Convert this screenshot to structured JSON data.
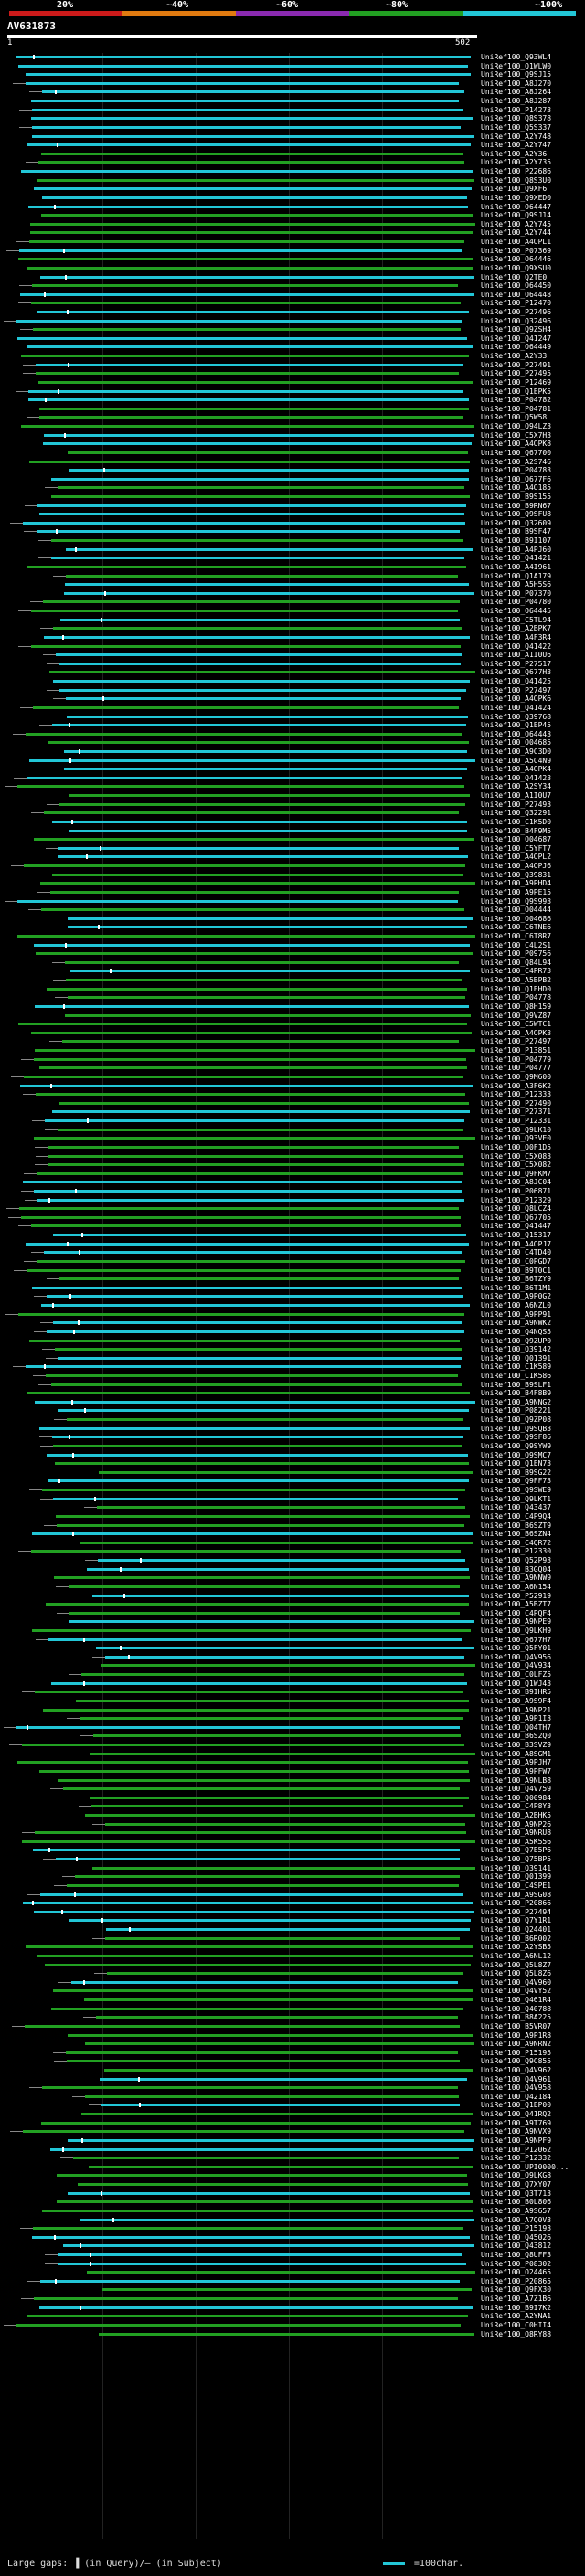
{
  "legend": {
    "labels": [
      "20%",
      "~40%",
      "~60%",
      "~80%",
      "~100%"
    ],
    "colors": [
      "#cc1a1a",
      "#e07a10",
      "#8a2ab0",
      "#22a022",
      "#22c6d6"
    ]
  },
  "query": {
    "title": "AV631873",
    "axis_start": "1",
    "axis_end": "502"
  },
  "colors": {
    "high": "#22c6d6",
    "mid": "#22a022",
    "tail": "#8a8a8a"
  },
  "hits": [
    "UniRef100_Q93WL4",
    "UniRef100_Q1WLW0",
    "UniRef100_Q9SJ15",
    "UniRef100_A8J270",
    "UniRef100_A8J264",
    "UniRef100_A8J287",
    "UniRef100_P14273",
    "UniRef100_Q8S378",
    "UniRef100_Q5S337",
    "UniRef100_A2Y748",
    "UniRef100_A2Y747",
    "UniRef100_A2Y36",
    "UniRef100_A2Y735",
    "UniRef100_P22686",
    "UniRef100_Q8S3U0",
    "UniRef100_Q9XF6",
    "UniRef100_Q9XED0",
    "UniRef100_O64447",
    "UniRef100_Q9SJ14",
    "UniRef100_A2Y745",
    "UniRef100_A2Y744",
    "UniRef100_A4OPL1",
    "UniRef100_P07369",
    "UniRef100_O64446",
    "UniRef100_Q9XSU0",
    "UniRef100_Q2TE0",
    "UniRef100_O64450",
    "UniRef100_O64448",
    "UniRef100_P12470",
    "UniRef100_P27496",
    "UniRef100_Q32496",
    "UniRef100_Q9ZSH4",
    "UniRef100_Q41247",
    "UniRef100_O64449",
    "UniRef100_A2Y33",
    "UniRef100_P27491",
    "UniRef100_P27495",
    "UniRef100_P12469",
    "UniRef100_Q1EPK5",
    "UniRef100_P04782",
    "UniRef100_P04781",
    "UniRef100_Q5W58",
    "UniRef100_Q94LZ3",
    "UniRef100_C5X7H3",
    "UniRef100_A4OPK8",
    "UniRef100_Q67700",
    "UniRef100_A2S746",
    "UniRef100_P04783",
    "UniRef100_Q677F6",
    "UniRef100_A4O185",
    "UniRef100_B9S155",
    "UniRef100_B9RN67",
    "UniRef100_Q9SFU8",
    "UniRef100_Q32609",
    "UniRef100_B9SF47",
    "UniRef100_B9I107",
    "UniRef100_A4PJ60",
    "UniRef100_Q41421",
    "UniRef100_A4I961",
    "UniRef100_Q1A179",
    "UniRef100_A5H5S6",
    "UniRef100_P07370",
    "UniRef100_P04780",
    "UniRef100_O64445",
    "UniRef100_C5TL94",
    "UniRef100_A2BPK7",
    "UniRef100_A4F3R4",
    "UniRef100_Q41422",
    "UniRef100_A1I0U6",
    "UniRef100_P27517",
    "UniRef100_Q677H3",
    "UniRef100_Q41425",
    "UniRef100_P27497",
    "UniRef100_A4OPK6",
    "UniRef100_Q41424",
    "UniRef100_Q39768",
    "UniRef100_Q1EP45",
    "UniRef100_O64443",
    "UniRef100_O04685",
    "UniRef100_A9C3D0",
    "UniRef100_A5C4N9",
    "UniRef100_A4OPK4",
    "UniRef100_Q41423",
    "UniRef100_A2SY34",
    "UniRef100_A1I0U7",
    "UniRef100_P27493",
    "UniRef100_Q32291",
    "UniRef100_C1K5D0",
    "UniRef100_B4F9M5",
    "UniRef100_O04687",
    "UniRef100_C5YFT7",
    "UniRef100_A4OPL2",
    "UniRef100_A4OPJ6",
    "UniRef100_Q39831",
    "UniRef100_A9PHD4",
    "UniRef100_A9PE15",
    "UniRef100_Q9S993",
    "UniRef100_O04444",
    "UniRef100_O04686",
    "UniRef100_C6TNE6",
    "UniRef100_C6T8R7",
    "UniRef100_C4L2S1",
    "UniRef100_P09756",
    "UniRef100_Q84L94",
    "UniRef100_C4PR73",
    "UniRef100_A5BPB2",
    "UniRef100_Q1EHD0",
    "UniRef100_P04778",
    "UniRef100_Q8H159",
    "UniRef100_Q9VZ87",
    "UniRef100_C5WTC1",
    "UniRef100_A4OPK3",
    "UniRef100_P27497",
    "UniRef100_P13851",
    "UniRef100_P04779",
    "UniRef100_P04777",
    "UniRef100_Q9M600",
    "UniRef100_A3F6K2",
    "UniRef100_P12333",
    "UniRef100_P27490",
    "UniRef100_P27371",
    "UniRef100_P12331",
    "UniRef100_Q9LK10",
    "UniRef100_Q93VE0",
    "UniRef100_Q0F1D5",
    "UniRef100_C5X083",
    "UniRef100_C5X082",
    "UniRef100_Q9FKM7",
    "UniRef100_A8JC04",
    "UniRef100_P06871",
    "UniRef100_P12329",
    "UniRef100_Q8LCZ4",
    "UniRef100_Q67705",
    "UniRef100_Q41447",
    "UniRef100_Q15317",
    "UniRef100_A4OPJ7",
    "UniRef100_C4TD40",
    "UniRef100_C0PGD7",
    "UniRef100_B9T0C1",
    "UniRef100_B6TZY9",
    "UniRef100_B6T1M1",
    "UniRef100_A9P0G2",
    "UniRef100_A6NZL0",
    "UniRef100_A9PP91",
    "UniRef100_A9NWK2",
    "UniRef100_Q4NQS5",
    "UniRef100_Q9ZUP0",
    "UniRef100_Q39142",
    "UniRef100_Q01391",
    "UniRef100_C1K589",
    "UniRef100_C1K586",
    "UniRef100_B9SLF1",
    "UniRef100_B4F8B9",
    "UniRef100_A9NNG2",
    "UniRef100_P08221",
    "UniRef100_Q9ZP08",
    "UniRef100_Q9SQB3",
    "UniRef100_Q9SF86",
    "UniRef100_Q9SYW9",
    "UniRef100_Q9SMC7",
    "UniRef100_Q1EN73",
    "UniRef100_B9SG22",
    "UniRef100_Q9FF73",
    "UniRef100_Q9SWE9",
    "UniRef100_Q9LKT1",
    "UniRef100_Q43437",
    "UniRef100_C4P9Q4",
    "UniRef100_B6SZT9",
    "UniRef100_B6SZN4",
    "UniRef100_C4QR72",
    "UniRef100_P12330",
    "UniRef100_Q52P93",
    "UniRef100_B3GQ04",
    "UniRef100_A9NNW9",
    "UniRef100_A6N154",
    "UniRef100_P52919",
    "UniRef100_A5BZT7",
    "UniRef100_C4PQF4",
    "UniRef100_A9NPE9",
    "UniRef100_Q9LKH9",
    "UniRef100_Q677H7",
    "UniRef100_Q5FY01",
    "UniRef100_Q4V956",
    "UniRef100_Q4V934",
    "UniRef100_C0LFZ5",
    "UniRef100_Q1WJ43",
    "UniRef100_B9IHR5",
    "UniRef100_A9S9F4",
    "UniRef100_A9NP21",
    "UniRef100_A9P1I3",
    "UniRef100_Q04TH7",
    "UniRef100_B6S2Q0",
    "UniRef100_B3SVZ9",
    "UniRef100_A8SGM1",
    "UniRef100_A9PJH7",
    "UniRef100_A9PFW7",
    "UniRef100_A9NLB8",
    "UniRef100_Q4V759",
    "UniRef100_Q00984",
    "UniRef100_C4P8Y3",
    "UniRef100_A2BHK5",
    "UniRef100_A9NP26",
    "UniRef100_A9NRU8",
    "UniRef100_A5K556",
    "UniRef100_Q7E5P6",
    "UniRef100_Q75BP5",
    "UniRef100_Q39141",
    "UniRef100_Q01399",
    "UniRef100_C4SPE1",
    "UniRef100_A9SG08",
    "UniRef100_P20866",
    "UniRef100_P27494",
    "UniRef100_Q7Y1R1",
    "UniRef100_Q24401",
    "UniRef100_B6R002",
    "UniRef100_A2YSB5",
    "UniRef100_A6NL12",
    "UniRef100_Q5L8Z7",
    "UniRef100_Q5L8Z6",
    "UniRef100_Q4V960",
    "UniRef100_Q4VY52",
    "UniRef100_Q461R4",
    "UniRef100_Q40788",
    "UniRef100_B8A225",
    "UniRef100_B5VR07",
    "UniRef100_A9P1R8",
    "UniRef100_A9NRN2",
    "UniRef100_P15195",
    "UniRef100_Q9C855",
    "UniRef100_Q4V962",
    "UniRef100_Q4V961",
    "UniRef100_Q4V958",
    "UniRef100_Q42184",
    "UniRef100_Q1EP00",
    "UniRef100_Q41RQ2",
    "UniRef100_A9T769",
    "UniRef100_A9NVX9",
    "UniRef100_A9NPF9",
    "UniRef100_P12062",
    "UniRef100_P12332",
    "UniRef100_UPI0000...",
    "UniRef100_Q9LKG8",
    "UniRef100_Q7XY07",
    "UniRef100_Q3T713",
    "UniRef100_B0L806",
    "UniRef100_A9S657",
    "UniRef100_A7Q0V3",
    "UniRef100_P15193",
    "UniRef100_Q45026",
    "UniRef100_Q43812",
    "UniRef100_Q8UFF3",
    "UniRef100_P08302",
    "UniRef100_O24465",
    "UniRef100_P20865",
    "UniRef100_Q9FX30",
    "UniRef100_A7Z1B6",
    "UniRef100_B9I7K2",
    "UniRef100_A2YNA1",
    "UniRef100_C0HII4",
    "UniRef100_Q8RY88"
  ],
  "footer": {
    "text_left": "Large gaps: ▐ (in Query)/– (in Subject)",
    "text_right": "=100char."
  }
}
